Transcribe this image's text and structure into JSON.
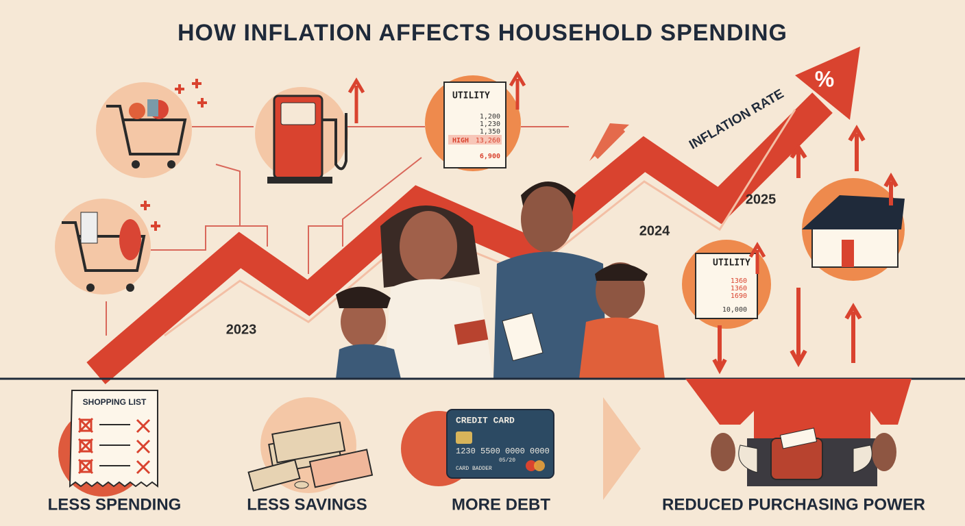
{
  "header": {
    "title": "HOW INFLATION AFFECTS HOUSEHOLD SPENDING"
  },
  "trend": {
    "label": "INFLATION RATE",
    "symbol": "%",
    "years": [
      "2023",
      "2024",
      "2025"
    ]
  },
  "utility_bill_top": {
    "title": "UTILITY",
    "lines": [
      "1,200",
      "1,230",
      "1,350"
    ],
    "high_label": "HIGH",
    "high_value": "13,260",
    "total": "6,900"
  },
  "utility_bill_right": {
    "title": "UTILITY",
    "lines": [
      "1360",
      "1360",
      "1690"
    ],
    "total": "10,000"
  },
  "shopping_list": {
    "title": "SHOPPING LIST"
  },
  "credit_card": {
    "title": "CREDIT CARD",
    "number": "1230 5500 0000 0000",
    "expiry": "05/20",
    "holder": "CARD BADDER"
  },
  "effects": [
    "LESS SPENDING",
    "LESS SAVINGS",
    "MORE DEBT",
    "REDUCED PURCHASING POWER"
  ]
}
